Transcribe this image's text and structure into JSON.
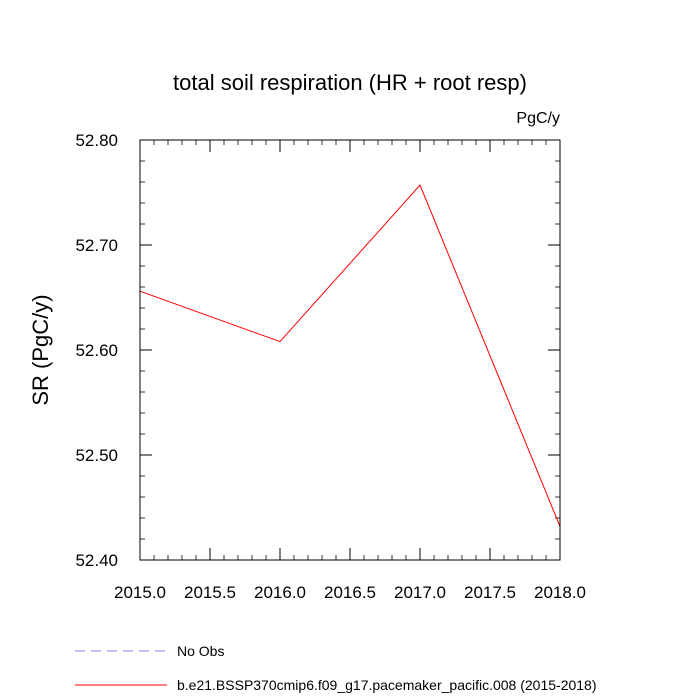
{
  "chart_data": {
    "type": "line",
    "title": "total soil respiration (HR + root resp)",
    "units": "PgC/y",
    "ylabel": "SR  (PgC/y)",
    "xlabel": "",
    "xlim": [
      2015.0,
      2018.0
    ],
    "ylim": [
      52.4,
      52.8
    ],
    "xticks": [
      "2015.0",
      "2015.5",
      "2016.0",
      "2016.5",
      "2017.0",
      "2017.5",
      "2018.0"
    ],
    "yticks": [
      "52.40",
      "52.50",
      "52.60",
      "52.70",
      "52.80"
    ],
    "series": [
      {
        "name": "b.e21.BSSP370cmip6.f09_g17.pacemaker_pacific.008 (2015-2018)",
        "color": "#ff0000",
        "style": "solid",
        "x": [
          2015.0,
          2016.0,
          2017.0,
          2018.0
        ],
        "y": [
          52.656,
          52.608,
          52.757,
          52.432
        ]
      }
    ],
    "legend": [
      {
        "label": "No Obs",
        "color": "#8080ff",
        "style": "dashed"
      },
      {
        "label": "b.e21.BSSP370cmip6.f09_g17.pacemaker_pacific.008 (2015-2018)",
        "color": "#ff0000",
        "style": "solid"
      }
    ]
  }
}
